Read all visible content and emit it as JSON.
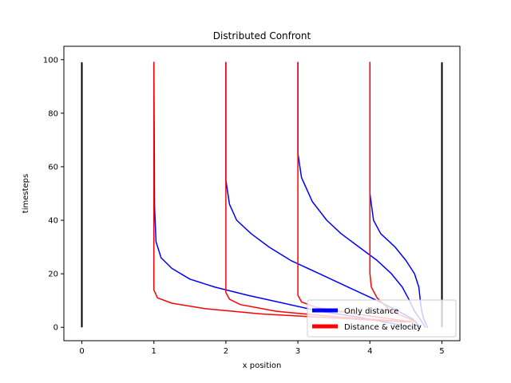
{
  "chart_data": {
    "type": "line",
    "title": "Distributed Confront",
    "xlabel": "x position",
    "ylabel": "timesteps",
    "xlim": [
      -0.25,
      5.25
    ],
    "ylim": [
      -5,
      105
    ],
    "xticks": [
      0,
      1,
      2,
      3,
      4,
      5
    ],
    "yticks": [
      0,
      20,
      40,
      60,
      80,
      100
    ],
    "grid": false,
    "legend_position": "lower-right",
    "boundaries": [
      {
        "x": [
          0,
          0
        ],
        "y": [
          0,
          99
        ],
        "color": "#000000"
      },
      {
        "x": [
          5,
          5
        ],
        "y": [
          0,
          99
        ],
        "color": "#000000"
      }
    ],
    "series": [
      {
        "name": "Only distance",
        "color": "#0000ff",
        "lines": [
          {
            "x": [
              4.7,
              4.6,
              4.4,
              4.1,
              3.7,
              3.3,
              2.9,
              2.6,
              2.35,
              2.15,
              2.05,
              2.0,
              2.0,
              2.0
            ],
            "y": [
              0,
              3,
              6,
              10,
              15,
              20,
              25,
              30,
              35,
              40,
              46,
              55,
              65,
              99
            ]
          },
          {
            "x": [
              4.77,
              4.7,
              4.62,
              4.55,
              4.45,
              4.3,
              4.1,
              3.85,
              3.6,
              3.4,
              3.2,
              3.05,
              3.0,
              3.0
            ],
            "y": [
              0,
              3,
              6,
              10,
              15,
              20,
              25,
              30,
              35,
              40,
              47,
              56,
              65,
              99
            ]
          },
          {
            "x": [
              4.8,
              4.75,
              4.72,
              4.7,
              4.68,
              4.62,
              4.5,
              4.35,
              4.15,
              4.05,
              4.0,
              4.0
            ],
            "y": [
              0,
              3,
              6,
              10,
              15,
              20,
              25,
              30,
              35,
              40,
              50,
              99
            ]
          },
          {
            "x": [
              4.6,
              4.2,
              3.8,
              3.3,
              2.8,
              2.3,
              1.85,
              1.5,
              1.25,
              1.1,
              1.03,
              1.01,
              1.0
            ],
            "y": [
              0,
              2,
              4,
              6,
              9,
              12,
              15,
              18,
              22,
              26,
              32,
              45,
              99
            ]
          }
        ]
      },
      {
        "name": "Distance & velocity",
        "color": "#ff0000",
        "lines": [
          {
            "x": [
              4.5,
              3.5,
              2.5,
              1.7,
              1.25,
              1.05,
              1.0,
              1.0,
              1.0
            ],
            "y": [
              2,
              3.5,
              5,
              7,
              9,
              11,
              14,
              30,
              99
            ]
          },
          {
            "x": [
              4.55,
              3.5,
              2.7,
              2.2,
              2.05,
              2.0,
              2.0
            ],
            "y": [
              2,
              4,
              6,
              8.5,
              10.5,
              13,
              99
            ]
          },
          {
            "x": [
              4.6,
              3.8,
              3.25,
              3.05,
              3.0,
              3.0
            ],
            "y": [
              2,
              5,
              7.5,
              9.5,
              12,
              99
            ]
          },
          {
            "x": [
              4.65,
              4.3,
              4.1,
              4.02,
              4.0,
              4.0
            ],
            "y": [
              2,
              6,
              11,
              15,
              20,
              99
            ]
          }
        ]
      }
    ]
  }
}
